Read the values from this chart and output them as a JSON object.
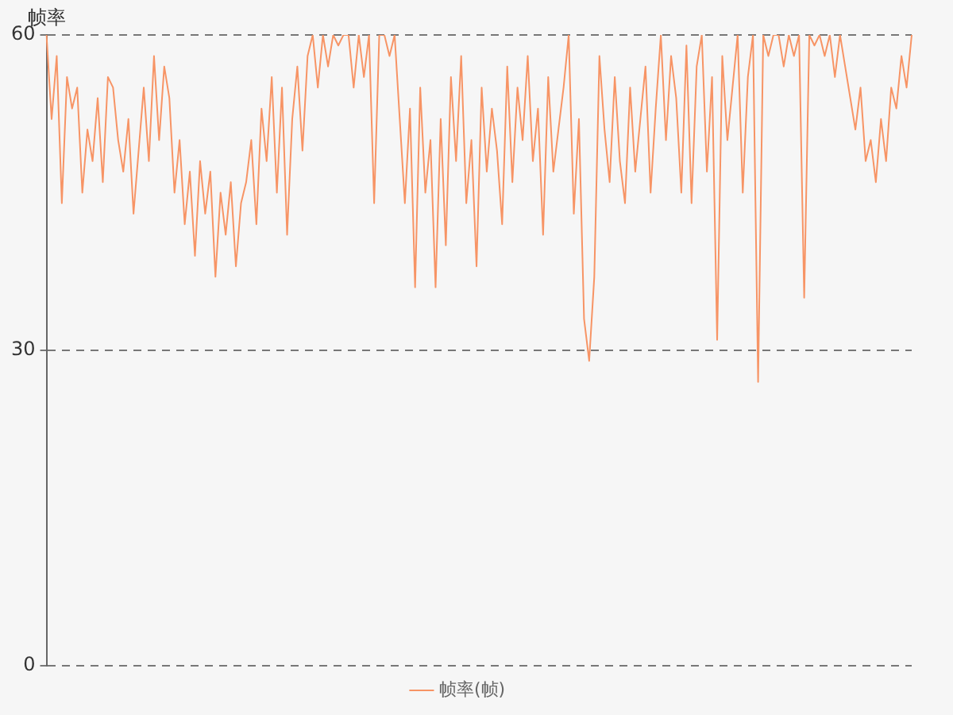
{
  "chart_data": {
    "type": "line",
    "ylabel": "帧率",
    "ylim": [
      0,
      60
    ],
    "yticks": [
      0,
      30,
      60
    ],
    "grid": "y",
    "legend": "bottom",
    "marker": "none",
    "line_style": "solid",
    "categories": [
      null,
      null,
      null,
      null,
      null,
      null,
      null,
      null,
      null,
      null,
      null,
      null,
      null,
      null,
      null,
      null,
      null,
      null,
      null,
      null,
      null,
      null,
      null,
      null,
      null,
      null,
      null,
      null,
      null,
      null,
      null,
      null,
      null,
      null,
      null,
      null,
      null,
      null,
      null,
      null,
      null,
      null,
      null,
      null,
      null,
      null,
      null,
      null,
      null,
      null,
      null,
      null,
      null,
      null,
      null,
      null,
      null,
      null,
      null,
      null,
      null,
      null,
      null,
      null,
      null,
      null,
      null,
      null,
      null,
      null,
      null,
      null,
      null,
      null,
      null,
      null,
      null,
      null,
      null,
      null,
      null,
      null,
      null,
      null,
      null,
      null,
      null,
      null,
      null,
      null,
      null,
      null,
      null,
      null,
      null,
      null,
      null,
      null,
      null,
      null,
      null,
      null,
      null,
      null,
      null,
      null,
      null,
      null,
      null,
      null,
      null,
      null,
      null,
      null,
      null,
      null,
      null,
      null,
      null,
      null,
      null,
      null,
      null,
      null,
      null,
      null,
      null,
      null,
      null,
      null,
      null,
      null,
      null,
      null,
      null,
      null,
      null,
      null,
      null,
      null,
      null,
      null,
      null,
      null,
      null,
      null,
      null,
      null,
      null,
      null,
      null,
      null,
      null,
      null,
      null,
      null,
      null,
      null,
      null,
      null,
      null,
      null,
      null,
      null,
      null,
      null,
      null,
      null,
      null,
      null
    ],
    "series": [
      {
        "name": "帧率(帧)",
        "color": "#f79465",
        "values": [
          60,
          52,
          58,
          44,
          56,
          53,
          55,
          45,
          51,
          48,
          54,
          46,
          56,
          55,
          50,
          47,
          52,
          43,
          49,
          55,
          48,
          58,
          50,
          57,
          54,
          45,
          50,
          42,
          47,
          39,
          48,
          43,
          47,
          37,
          45,
          41,
          46,
          38,
          44,
          46,
          50,
          42,
          53,
          48,
          56,
          45,
          55,
          41,
          52,
          57,
          49,
          58,
          60,
          55,
          60,
          57,
          60,
          59,
          60,
          60,
          55,
          60,
          56,
          60,
          44,
          60,
          60,
          58,
          60,
          52,
          44,
          53,
          36,
          55,
          45,
          50,
          36,
          52,
          40,
          56,
          48,
          58,
          44,
          50,
          38,
          55,
          47,
          53,
          49,
          42,
          57,
          46,
          55,
          50,
          58,
          48,
          53,
          41,
          56,
          47,
          51,
          55,
          60,
          43,
          52,
          33,
          29,
          37,
          58,
          51,
          46,
          56,
          48,
          44,
          55,
          47,
          52,
          57,
          45,
          53,
          60,
          50,
          58,
          54,
          45,
          59,
          44,
          57,
          60,
          47,
          56,
          31,
          58,
          50,
          55,
          60,
          45,
          56,
          60,
          27,
          60,
          58,
          60,
          60,
          57,
          60,
          58,
          60,
          35,
          60,
          59,
          60,
          58,
          60,
          56,
          60,
          57,
          54,
          51,
          55,
          48,
          50,
          46,
          52,
          48,
          55,
          53,
          58,
          55,
          60
        ]
      }
    ]
  }
}
